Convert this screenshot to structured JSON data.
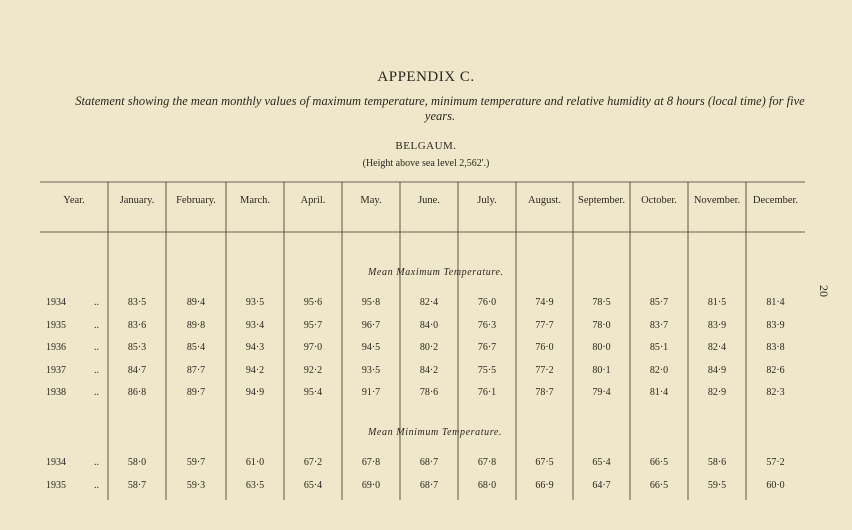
{
  "header": {
    "title": "APPENDIX C.",
    "subtitle": "Statement showing the mean monthly values of maximum temperature, minimum temperature and relative humidity at 8 hours (local time) for five years.",
    "station": "BELGAUM.",
    "height": "(Height above sea level 2,562'.)"
  },
  "page_number": "20",
  "table": {
    "columns": [
      "Year.",
      "January.",
      "February.",
      "March.",
      "April.",
      "May.",
      "June.",
      "July.",
      "August.",
      "September.",
      "October.",
      "November.",
      "December."
    ],
    "sections": [
      {
        "label": "Mean Maximum Temperature.",
        "rows": [
          {
            "year": "1934",
            "leader": "..",
            "values": [
              "83·5",
              "89·4",
              "93·5",
              "95·6",
              "95·8",
              "82·4",
              "76·0",
              "74·9",
              "78·5",
              "85·7",
              "81·5",
              "81·4"
            ]
          },
          {
            "year": "1935",
            "leader": "..",
            "values": [
              "83·6",
              "89·8",
              "93·4",
              "95·7",
              "96·7",
              "84·0",
              "76·3",
              "77·7",
              "78·0",
              "83·7",
              "83·9",
              "83·9"
            ]
          },
          {
            "year": "1936",
            "leader": "..",
            "values": [
              "85·3",
              "85·4",
              "94·3",
              "97·0",
              "94·5",
              "80·2",
              "76·7",
              "76·0",
              "80·0",
              "85·1",
              "82·4",
              "83·8"
            ]
          },
          {
            "year": "1937",
            "leader": "..",
            "values": [
              "84·7",
              "87·7",
              "94·2",
              "92·2",
              "93·5",
              "84·2",
              "75·5",
              "77·2",
              "80·1",
              "82·0",
              "84·9",
              "82·6"
            ]
          },
          {
            "year": "1938",
            "leader": "..",
            "values": [
              "86·8",
              "89·7",
              "94·9",
              "95·4",
              "91·7",
              "78·6",
              "76·1",
              "78·7",
              "79·4",
              "81·4",
              "82·9",
              "82·3"
            ]
          }
        ]
      },
      {
        "label": "Mean Minimum Temperature.",
        "rows": [
          {
            "year": "1934",
            "leader": "..",
            "values": [
              "58·0",
              "59·7",
              "61·0",
              "67·2",
              "67·8",
              "68·7",
              "67·8",
              "67·5",
              "65·4",
              "66·5",
              "58·6",
              "57·2"
            ]
          },
          {
            "year": "1935",
            "leader": "..",
            "values": [
              "58·7",
              "59·3",
              "63·5",
              "65·4",
              "69·0",
              "68·7",
              "68·0",
              "66·9",
              "64·7",
              "66·5",
              "59·5",
              "60·0"
            ]
          }
        ]
      }
    ]
  }
}
